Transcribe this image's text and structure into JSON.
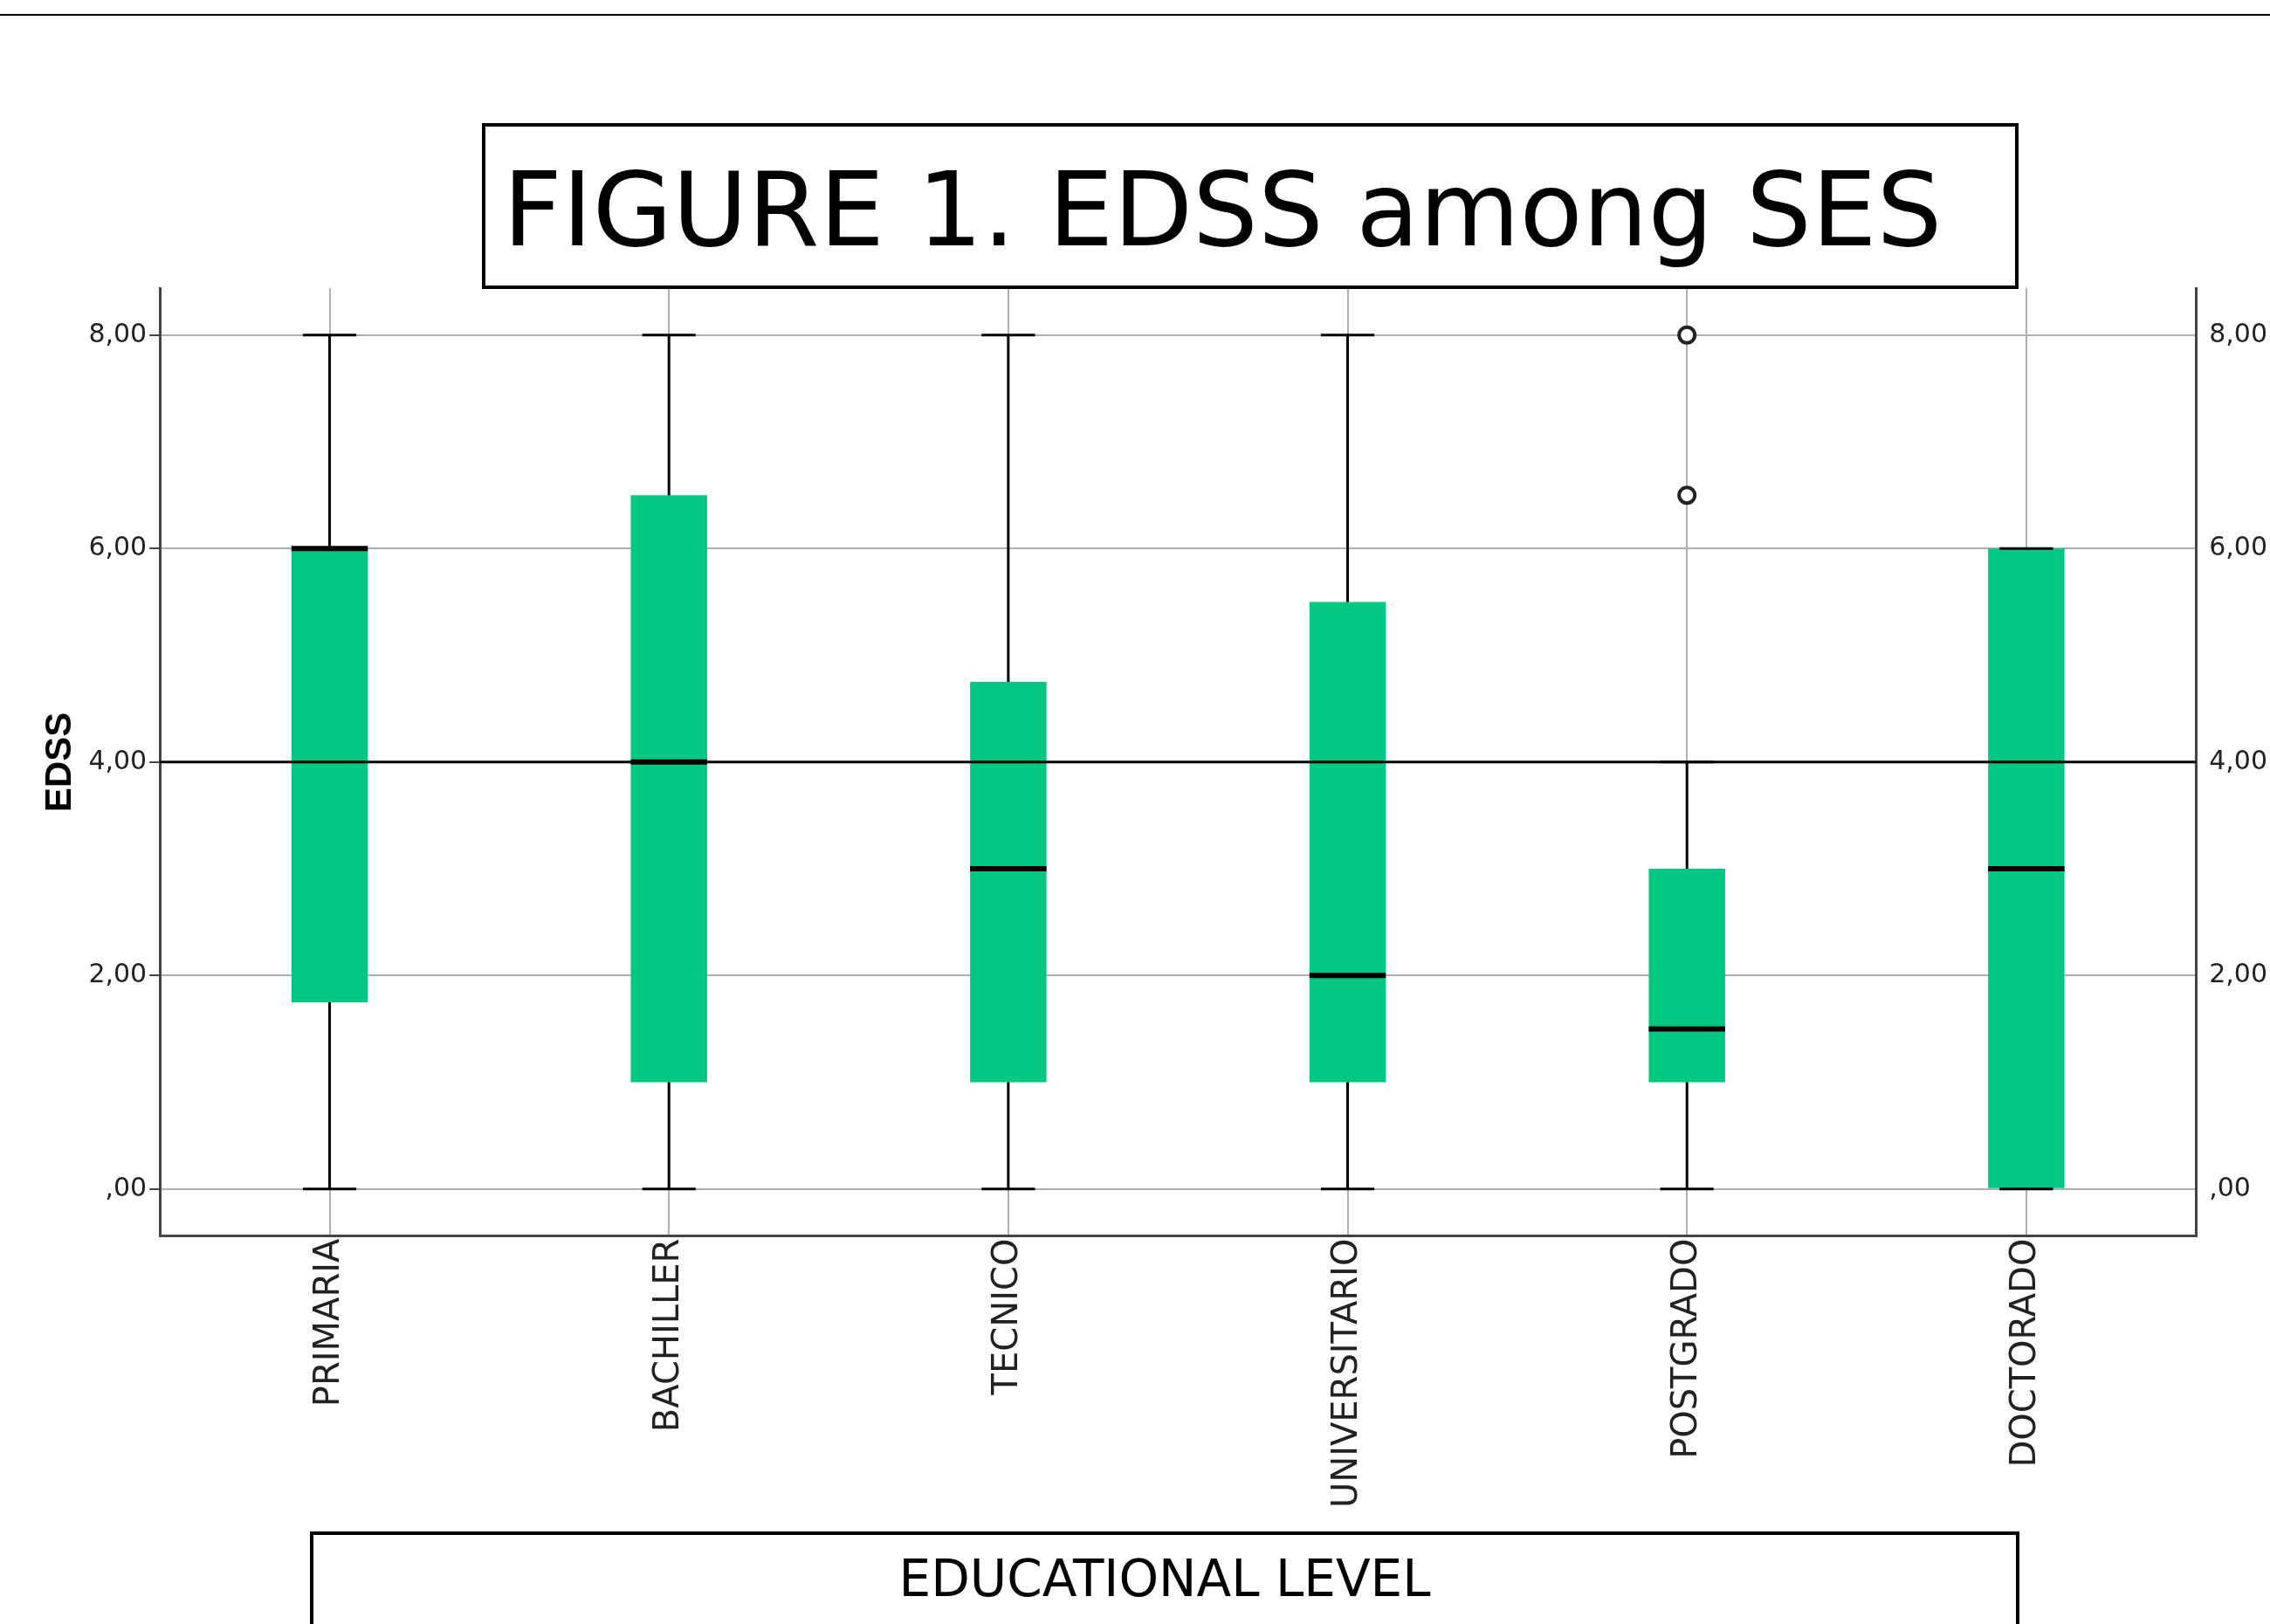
{
  "chart_data": {
    "type": "box",
    "title": "FIGURE 1. EDSS among SES",
    "xlabel": "EDUCATIONAL LEVEL",
    "ylabel": "EDSS",
    "categories": [
      "PRIMARIA",
      "BACHILLER",
      "TECNICO",
      "UNIVERSITARIO",
      "POSTGRADO",
      "DOCTORADO"
    ],
    "color": "#00c882",
    "boxes": [
      {
        "low": 0,
        "q1": 1.75,
        "median": 6,
        "q3": 6,
        "high": 8
      },
      {
        "low": 0,
        "q1": 1,
        "median": 4,
        "q3": 6.5,
        "high": 8
      },
      {
        "low": 0,
        "q1": 1,
        "median": 3,
        "q3": 4.75,
        "high": 8
      },
      {
        "low": 0,
        "q1": 1,
        "median": 2,
        "q3": 5.5,
        "high": 8
      },
      {
        "low": 0,
        "q1": 1,
        "median": 1.5,
        "q3": 3,
        "high": 4,
        "outliers": [
          6.5,
          8
        ]
      },
      {
        "low": 0,
        "q1": 0,
        "median": 3,
        "q3": 6,
        "high": 6
      }
    ],
    "ylim": [
      -0.44,
      8.44
    ],
    "yticks": [
      {
        "value": 0,
        "label": ",00"
      },
      {
        "value": 2,
        "label": "2,00"
      },
      {
        "value": 4,
        "label": "4,00"
      },
      {
        "value": 6,
        "label": "6,00"
      },
      {
        "value": 8,
        "label": "8,00"
      }
    ],
    "y2lim": [
      -0.44,
      8.44
    ],
    "y2ticks": [
      {
        "value": 0,
        "label": ",00"
      },
      {
        "value": 2,
        "label": "2,00"
      },
      {
        "value": 4,
        "label": "4,00"
      },
      {
        "value": 6,
        "label": "6,00"
      },
      {
        "value": 8,
        "label": "8,00"
      }
    ],
    "ref_lines": [
      {
        "axis": "y",
        "value": 4,
        "color": "#000000"
      }
    ],
    "grid": true
  }
}
